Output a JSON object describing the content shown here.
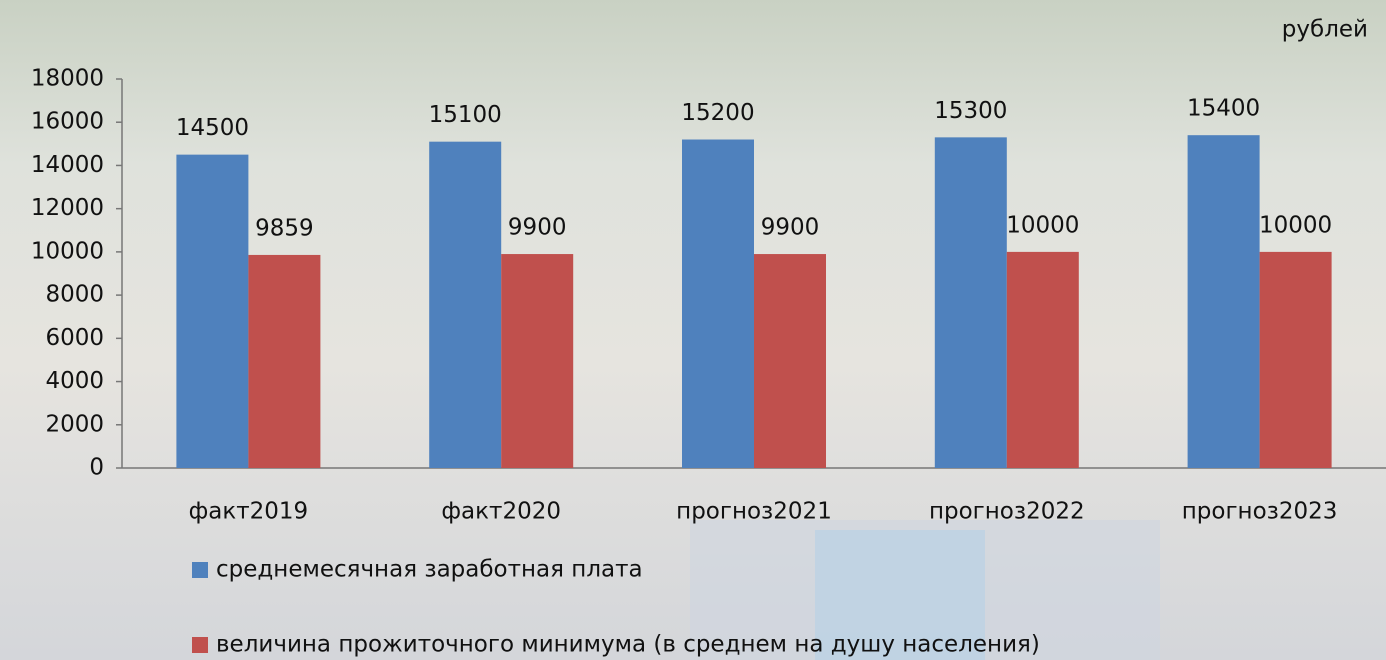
{
  "chart_data": {
    "type": "bar",
    "unit_label": "рублей",
    "categories": [
      "факт2019",
      "факт2020",
      "прогноз2021",
      "прогноз2022",
      "прогноз2023"
    ],
    "series": [
      {
        "name": "среднемесячная заработная плата",
        "color": "#4f81bd",
        "values": [
          14500,
          15100,
          15200,
          15300,
          15400
        ]
      },
      {
        "name": "величина прожиточного минимума (в среднем на душу населения)",
        "color": "#c0504d",
        "values": [
          9859,
          9900,
          9900,
          10000,
          10000
        ]
      }
    ],
    "ylim": [
      0,
      18000
    ],
    "yticks": [
      0,
      2000,
      4000,
      6000,
      8000,
      10000,
      12000,
      14000,
      16000,
      18000
    ],
    "grid": false
  }
}
